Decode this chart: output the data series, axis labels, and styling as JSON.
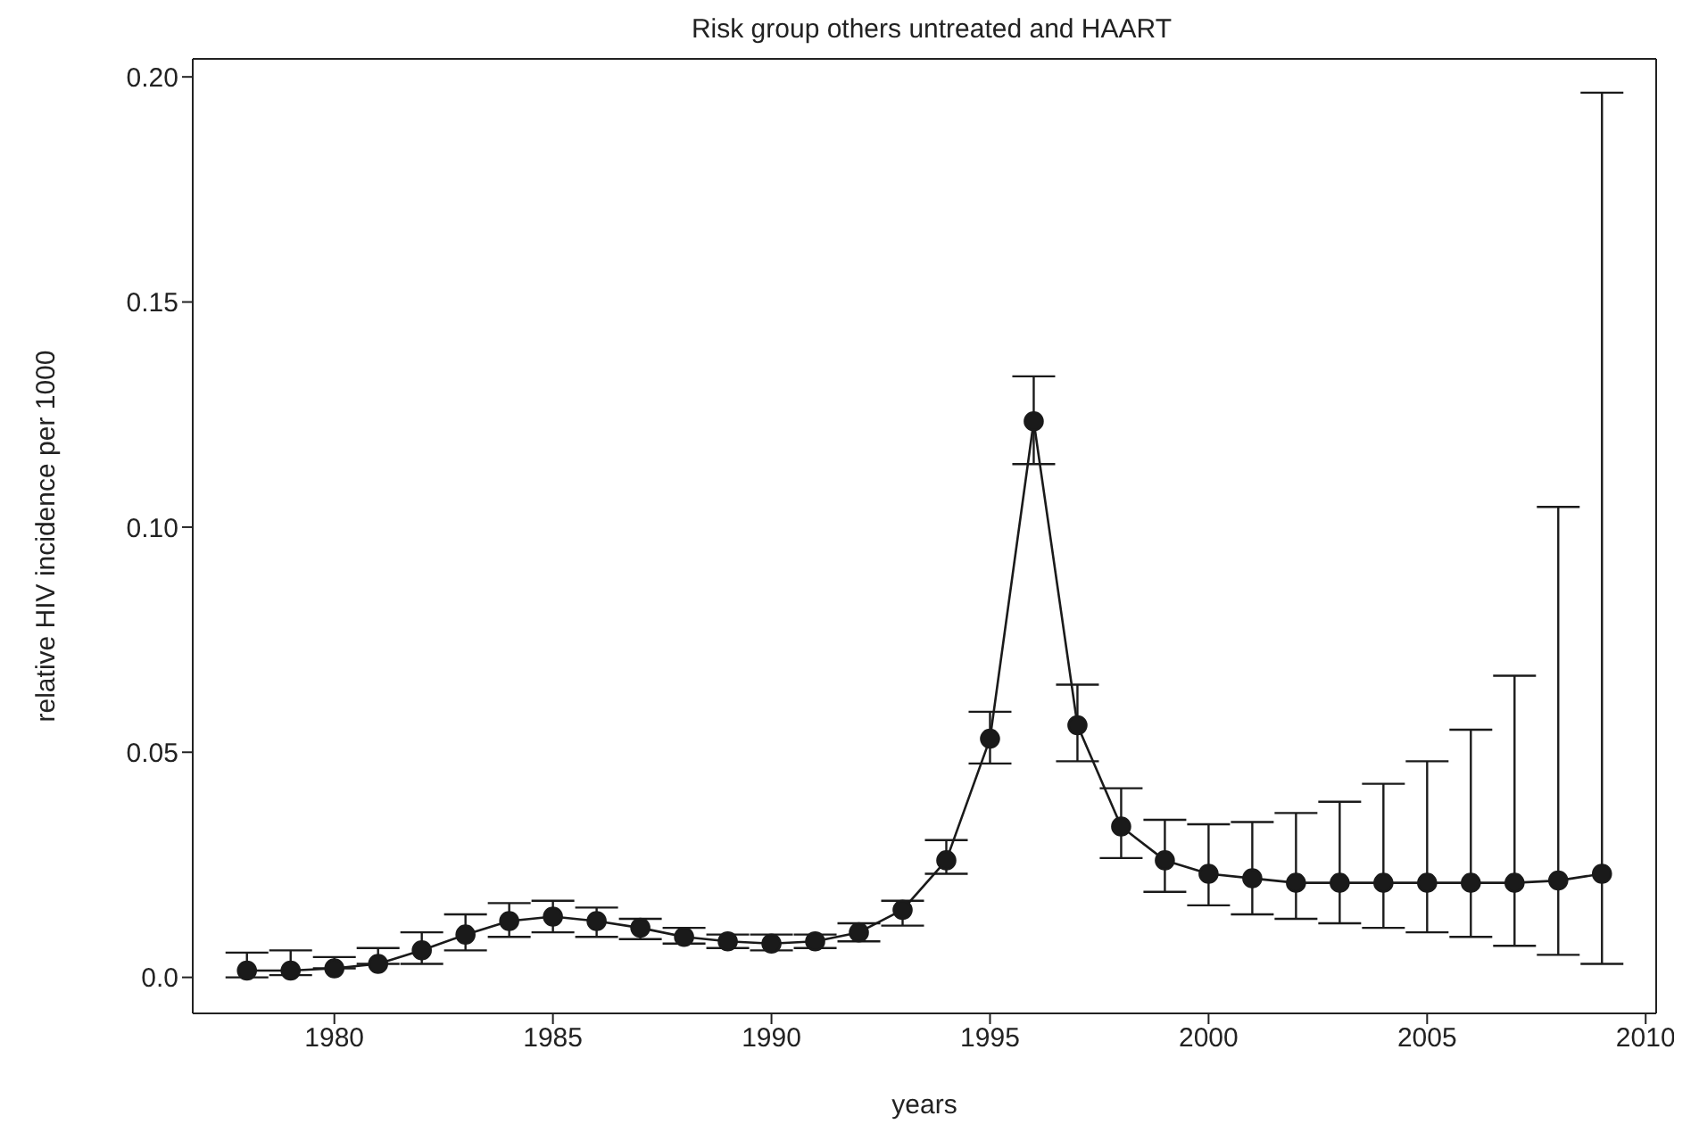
{
  "chart_data": {
    "type": "line",
    "title": "Risk group others untreated and HAART",
    "xlabel": "years",
    "ylabel": "relative HIV incidence per 1000",
    "x": [
      1978,
      1979,
      1980,
      1981,
      1982,
      1983,
      1984,
      1985,
      1986,
      1987,
      1988,
      1989,
      1990,
      1991,
      1992,
      1993,
      1994,
      1995,
      1996,
      1997,
      1998,
      1999,
      2000,
      2001,
      2002,
      2003,
      2004,
      2005,
      2006,
      2007,
      2008,
      2009
    ],
    "series": [
      {
        "color": "#1a1a1a",
        "values": [
          0.0015,
          0.0015,
          0.002,
          0.003,
          0.006,
          0.0095,
          0.0125,
          0.0135,
          0.0125,
          0.011,
          0.009,
          0.008,
          0.0075,
          0.008,
          0.01,
          0.015,
          0.026,
          0.053,
          0.1235,
          0.056,
          0.0335,
          0.026,
          0.023,
          0.022,
          0.021,
          0.021,
          0.021,
          0.021,
          0.021,
          0.021,
          0.0215,
          0.023
        ],
        "errors": [
          [
            0.0,
            0.0055
          ],
          [
            0.0005,
            0.006
          ],
          [
            0.002,
            0.0045
          ],
          [
            0.003,
            0.0065
          ],
          [
            0.003,
            0.01
          ],
          [
            0.006,
            0.014
          ],
          [
            0.009,
            0.0165
          ],
          [
            0.01,
            0.017
          ],
          [
            0.009,
            0.0155
          ],
          [
            0.0085,
            0.013
          ],
          [
            0.0075,
            0.011
          ],
          [
            0.0065,
            0.0095
          ],
          [
            0.006,
            0.0095
          ],
          [
            0.0065,
            0.0095
          ],
          [
            0.008,
            0.012
          ],
          [
            0.0115,
            0.017
          ],
          [
            0.023,
            0.0305
          ],
          [
            0.0475,
            0.059
          ],
          [
            0.114,
            0.1335
          ],
          [
            0.048,
            0.065
          ],
          [
            0.0265,
            0.042
          ],
          [
            0.019,
            0.035
          ],
          [
            0.016,
            0.034
          ],
          [
            0.014,
            0.0345
          ],
          [
            0.013,
            0.0365
          ],
          [
            0.012,
            0.039
          ],
          [
            0.011,
            0.043
          ],
          [
            0.01,
            0.048
          ],
          [
            0.009,
            0.055
          ],
          [
            0.007,
            0.067
          ],
          [
            0.005,
            0.1045
          ],
          [
            0.003,
            0.1965
          ]
        ]
      }
    ],
    "xlim": [
      1976.76,
      2010.24
    ],
    "xticks": [
      1980,
      1985,
      1990,
      1995,
      2000,
      2005,
      2010
    ],
    "ylim": [
      -0.008,
      0.204
    ],
    "yticks": [
      {
        "value": 0,
        "label": "0.0"
      },
      {
        "value": 0.05,
        "label": "0.05"
      },
      {
        "value": 0.1,
        "label": "0.10"
      },
      {
        "value": 0.15,
        "label": "0.15"
      },
      {
        "value": 0.2,
        "label": "0.20"
      }
    ],
    "legend": false,
    "marker": "circle",
    "line_style": "solid"
  }
}
